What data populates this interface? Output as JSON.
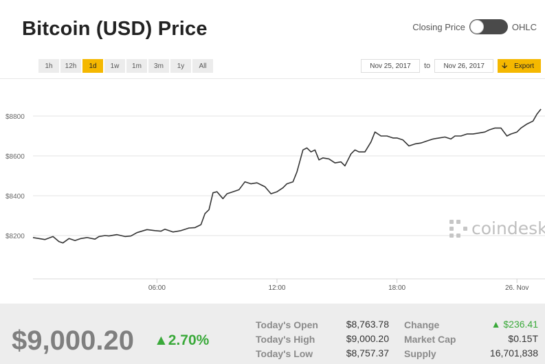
{
  "header": {
    "title": "Bitcoin (USD) Price"
  },
  "toggle": {
    "left_label": "Closing Price",
    "right_label": "OHLC"
  },
  "ranges": [
    {
      "label": "1h",
      "active": false
    },
    {
      "label": "12h",
      "active": false
    },
    {
      "label": "1d",
      "active": true
    },
    {
      "label": "1w",
      "active": false
    },
    {
      "label": "1m",
      "active": false
    },
    {
      "label": "3m",
      "active": false
    },
    {
      "label": "1y",
      "active": false
    },
    {
      "label": "All",
      "active": false
    }
  ],
  "dates": {
    "from": "Nov 25, 2017",
    "to_label": "to",
    "to": "Nov 26, 2017",
    "export_label": "Export",
    "export_icon": "download-arrow-icon"
  },
  "watermark": {
    "text": "coindesk"
  },
  "colors": {
    "accent": "#f5b800",
    "line": "#333333",
    "positive": "#3aa93a",
    "muted": "#7f7f7f"
  },
  "chart_data": {
    "type": "line",
    "title": "Bitcoin (USD) Price",
    "x_ticks": [
      "06:00",
      "12:00",
      "18:00",
      "26. Nov"
    ],
    "x_tick_hours": [
      6,
      12,
      18,
      24
    ],
    "y_ticks": [
      "$8200",
      "$8400",
      "$8600",
      "$8800"
    ],
    "y_tick_values": [
      8200,
      8400,
      8600,
      8800
    ],
    "ylim": [
      8000,
      8900
    ],
    "xlim": [
      -0.2,
      25.3
    ],
    "grid": true,
    "series": [
      {
        "x": [
          -0.2,
          0.1,
          0.4,
          0.8,
          1.1,
          1.3,
          1.6,
          1.9,
          2.2,
          2.5,
          2.9,
          3.1,
          3.4,
          3.6,
          4.0,
          4.4,
          4.7,
          5.0,
          5.5,
          5.9,
          6.2,
          6.4,
          6.8,
          7.2,
          7.6,
          7.9,
          8.2,
          8.4,
          8.6,
          8.8,
          9.0,
          9.3,
          9.5,
          9.8,
          10.1,
          10.4,
          10.7,
          11.0,
          11.4,
          11.7,
          12.0,
          12.3,
          12.5,
          12.8,
          13.0,
          13.3,
          13.5,
          13.7,
          13.9,
          14.1,
          14.3,
          14.6,
          14.9,
          15.2,
          15.4,
          15.7,
          15.9,
          16.1,
          16.4,
          16.7,
          16.9,
          17.2,
          17.5,
          17.8,
          18.0,
          18.3,
          18.6,
          18.9,
          19.2,
          19.5,
          19.8,
          20.1,
          20.4,
          20.7,
          20.9,
          21.2,
          21.5,
          21.8,
          22.1,
          22.4,
          22.6,
          22.9,
          23.2,
          23.5,
          23.7,
          24.0,
          24.2,
          24.5,
          24.8,
          25.0,
          25.2
        ],
        "y": [
          8190,
          8185,
          8180,
          8195,
          8170,
          8163,
          8185,
          8175,
          8185,
          8190,
          8182,
          8195,
          8200,
          8198,
          8205,
          8195,
          8198,
          8215,
          8230,
          8225,
          8222,
          8232,
          8218,
          8225,
          8238,
          8240,
          8255,
          8310,
          8330,
          8415,
          8420,
          8385,
          8410,
          8420,
          8430,
          8470,
          8460,
          8465,
          8445,
          8410,
          8420,
          8440,
          8460,
          8470,
          8520,
          8630,
          8640,
          8620,
          8630,
          8580,
          8590,
          8585,
          8565,
          8570,
          8550,
          8610,
          8630,
          8620,
          8620,
          8670,
          8720,
          8700,
          8700,
          8690,
          8690,
          8680,
          8650,
          8660,
          8665,
          8675,
          8685,
          8690,
          8695,
          8685,
          8700,
          8700,
          8710,
          8710,
          8715,
          8720,
          8730,
          8740,
          8740,
          8700,
          8710,
          8720,
          8740,
          8760,
          8775,
          8810,
          8835
        ]
      }
    ]
  },
  "footer": {
    "price": "$9,000.20",
    "change_pct": "2.70%",
    "stats_left": [
      {
        "label": "Today's Open",
        "value": "$8,763.78"
      },
      {
        "label": "Today's High",
        "value": "$9,000.20"
      },
      {
        "label": "Today's Low",
        "value": "$8,757.37"
      }
    ],
    "stats_right": [
      {
        "label": "Change",
        "value": "▲ $236.41"
      },
      {
        "label": "Market Cap",
        "value": "$0.15T"
      },
      {
        "label": "Supply",
        "value": "16,701,838"
      }
    ]
  }
}
